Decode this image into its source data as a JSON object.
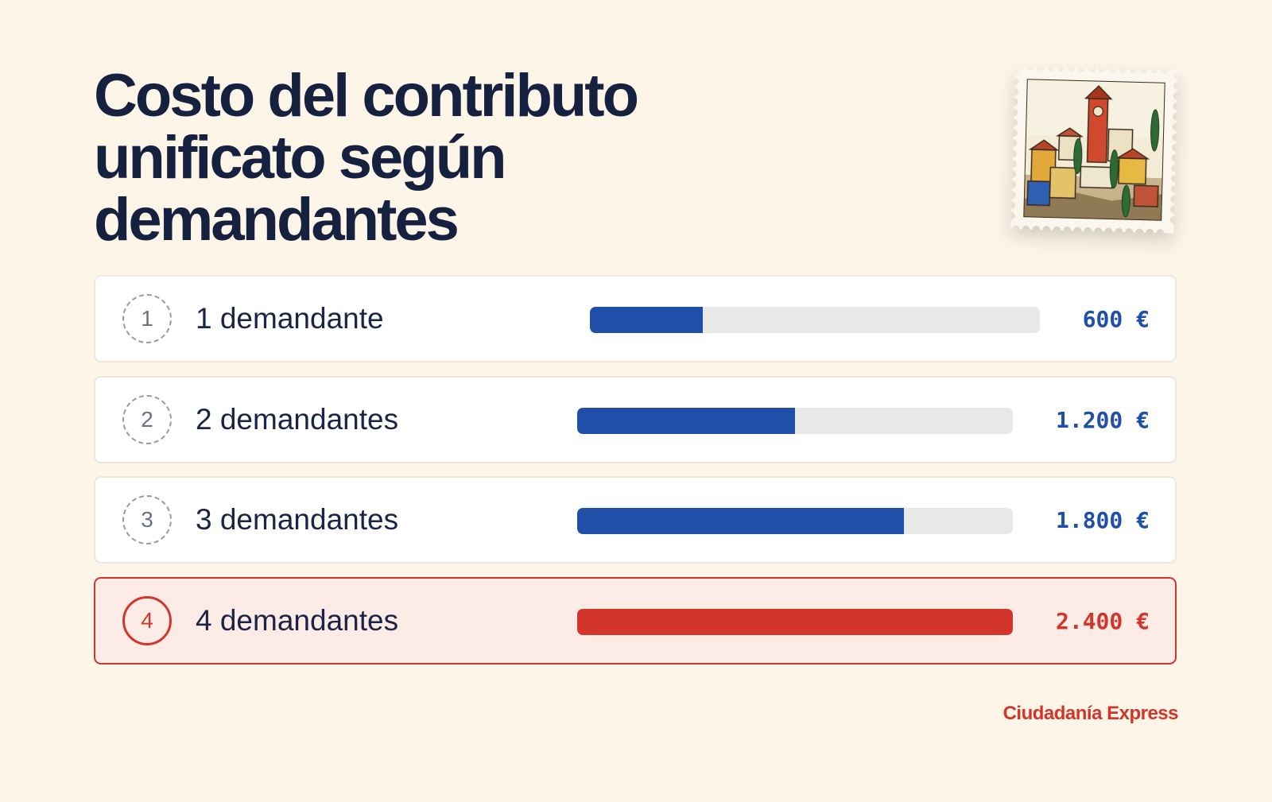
{
  "title_lines": [
    "Costo del contributo",
    "unificato según",
    "demandantes"
  ],
  "brand": "Ciudadanía Express",
  "colors": {
    "background": "#fdf5e8",
    "bar": "#1f4fa8",
    "highlight": "#d3352b",
    "track": "#e8e8e8",
    "title": "#16203f"
  },
  "chart_data": {
    "type": "bar",
    "orientation": "horizontal",
    "max_value": 2400,
    "currency": "€",
    "rows": [
      {
        "index": "1",
        "label": "1 demandante",
        "value": 600,
        "value_label": "600 €",
        "highlight": false
      },
      {
        "index": "2",
        "label": "2 demandantes",
        "value": 1200,
        "value_label": "1.200 €",
        "highlight": false
      },
      {
        "index": "3",
        "label": "3 demandantes",
        "value": 1800,
        "value_label": "1.800 €",
        "highlight": false
      },
      {
        "index": "4",
        "label": "4 demandantes",
        "value": 2400,
        "value_label": "2.400 €",
        "highlight": true
      }
    ]
  }
}
